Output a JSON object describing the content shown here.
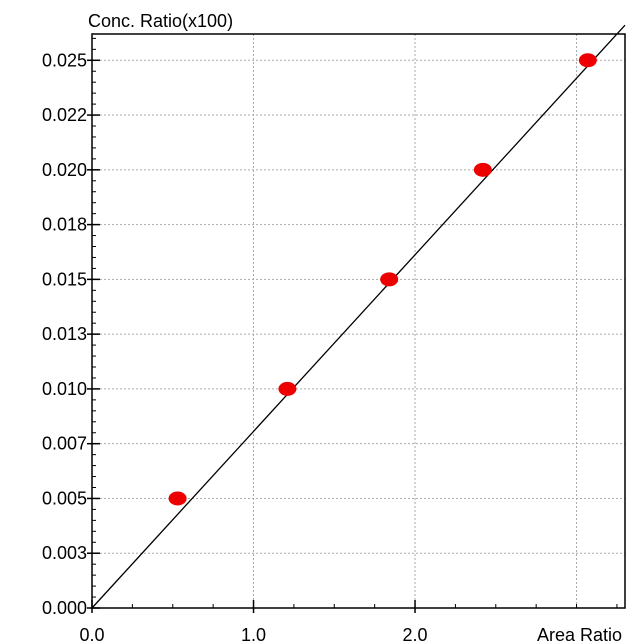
{
  "chart_data": {
    "type": "scatter",
    "title": "",
    "xlabel": "Area Ratio",
    "ylabel": "Conc. Ratio(x100)",
    "xlim": [
      0.0,
      3.3
    ],
    "ylim": [
      0.0,
      0.0262
    ],
    "grid": true,
    "x_ticks": [
      {
        "value": 0.0,
        "label": "0.0"
      },
      {
        "value": 1.0,
        "label": "1.0"
      },
      {
        "value": 2.0,
        "label": "2.0"
      }
    ],
    "y_ticks": [
      {
        "value": 0.0,
        "label": "0.000"
      },
      {
        "value": 0.0025,
        "label": "0.003"
      },
      {
        "value": 0.005,
        "label": "0.005"
      },
      {
        "value": 0.0075,
        "label": "0.007"
      },
      {
        "value": 0.01,
        "label": "0.010"
      },
      {
        "value": 0.0125,
        "label": "0.013"
      },
      {
        "value": 0.015,
        "label": "0.015"
      },
      {
        "value": 0.0175,
        "label": "0.018"
      },
      {
        "value": 0.02,
        "label": "0.020"
      },
      {
        "value": 0.0225,
        "label": "0.022"
      },
      {
        "value": 0.025,
        "label": "0.025"
      }
    ],
    "x_minor_step": 0.25,
    "y_minor_step": 0.0005,
    "points": [
      {
        "x": 0.53,
        "y": 0.005
      },
      {
        "x": 1.21,
        "y": 0.01
      },
      {
        "x": 1.84,
        "y": 0.015
      },
      {
        "x": 2.42,
        "y": 0.02
      },
      {
        "x": 3.07,
        "y": 0.025
      }
    ],
    "fit_line": {
      "x0": 0.0,
      "y0": 0.0,
      "x1": 3.3,
      "y1": 0.0266
    },
    "colors": {
      "points": "#ee0000",
      "fit_line": "#000000",
      "grid": "#aaaaaa",
      "axis": "#000000"
    }
  }
}
